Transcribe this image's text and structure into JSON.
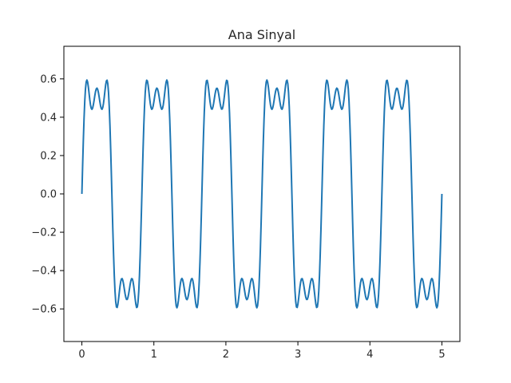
{
  "chart_data": {
    "type": "line",
    "title": "Ana Sinyal",
    "xlabel": "",
    "ylabel": "",
    "xlim": [
      -0.25,
      5.25
    ],
    "ylim": [
      -0.77,
      0.77
    ],
    "x_ticks": [
      0,
      1,
      2,
      3,
      4,
      5
    ],
    "x_tick_labels": [
      "0",
      "1",
      "2",
      "3",
      "4",
      "5"
    ],
    "y_ticks": [
      -0.6,
      -0.4,
      -0.2,
      0.0,
      0.2,
      0.4,
      0.6
    ],
    "y_tick_labels": [
      "−0.6",
      "−0.4",
      "−0.2",
      "0.0",
      "0.2",
      "0.4",
      "0.6"
    ],
    "grid": false,
    "color": "#1f77b4",
    "series": [
      {
        "x_start": 0,
        "x_end": 5,
        "samples": 500,
        "components": [
          {
            "amplitude": 0.6366,
            "frequency_hz": 1.2,
            "phase": 0
          },
          {
            "amplitude": 0.2122,
            "frequency_hz": 3.6,
            "phase": 0
          },
          {
            "amplitude": 0.1273,
            "frequency_hz": 6.0,
            "phase": 0
          }
        ]
      }
    ]
  }
}
